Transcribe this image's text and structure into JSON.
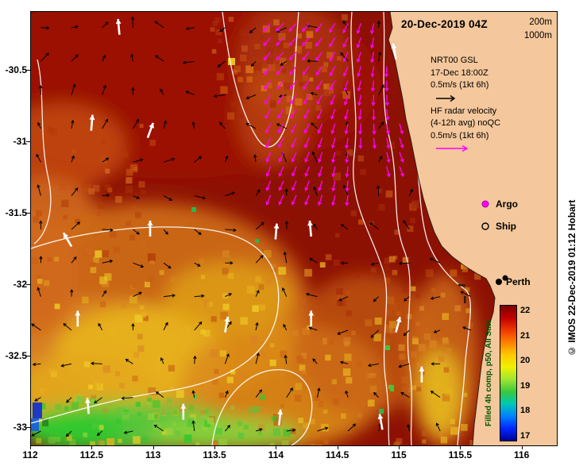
{
  "title": "20-Dec-2019 04Z",
  "copyright": "© IMOS 22-Dec-2019 01:12 Hobart",
  "legend": {
    "depth_labels": [
      "200m",
      "1000m"
    ],
    "gsl": {
      "name": "NRT00 GSL",
      "time": "17-Dec 18:00Z",
      "scale": "0.5m/s (1kt 6h)"
    },
    "hf": {
      "name": "HF radar velocity",
      "qualifier": "(4-12h avg) noQC",
      "scale": "0.5m/s (1kt 6h)"
    },
    "argo_label": "Argo",
    "ship_label": "Ship"
  },
  "map": {
    "city_label": "Perth"
  },
  "colorbar": {
    "label": "Filled 4h comp, p50, All Sats",
    "tick_labels": [
      "22",
      "21",
      "20",
      "19",
      "18",
      "17"
    ],
    "stops": [
      "#7f0000",
      "#c00000",
      "#f03800",
      "#ff8000",
      "#ffc800",
      "#f0f000",
      "#a0e632",
      "#3cc83c",
      "#00c8b4",
      "#0082ff",
      "#0028ff",
      "#000096"
    ]
  },
  "axes": {
    "x_tick_labels": [
      "112",
      "112.5",
      "113",
      "113.5",
      "114",
      "114.5",
      "115",
      "115.5",
      "116"
    ],
    "x_tick_values": [
      112,
      112.5,
      113,
      113.5,
      114,
      114.5,
      115,
      115.5,
      116
    ],
    "y_tick_labels": [
      "-30.5",
      "-31",
      "-31.5",
      "-32",
      "-32.5",
      "-33"
    ],
    "y_tick_values": [
      -30.5,
      -31,
      -31.5,
      -32,
      -32.5,
      -33
    ],
    "x_range": [
      112,
      116.28
    ],
    "y_range": [
      -33.12,
      -30.09
    ]
  },
  "chart_data": {
    "type": "heatmap",
    "title": "20-Dec-2019 04Z",
    "variable": "Sea surface temperature (°C), filled 4h composite, p50, all satellites",
    "region": {
      "lon": [
        112,
        116.28
      ],
      "lat": [
        -33.12,
        -30.09
      ]
    },
    "sst_scale_c": [
      17,
      22
    ],
    "sst_zones": [
      {
        "area": "offshore north and central (north of ~-31.5)",
        "sst_c": 22
      },
      {
        "area": "left edge near 112E, -31",
        "sst_c": 21
      },
      {
        "area": "southwest interior 112-114E, -31.5 to -32.5",
        "sst_c": 20.5
      },
      {
        "area": "south-central 113-114.5E, -32.5 to -33",
        "sst_c": 20
      },
      {
        "area": "far-south strip near -33",
        "sst_c": 19
      },
      {
        "area": "bottom-left corner speck",
        "sst_c": 17.5
      },
      {
        "area": "coastal strip south of Perth",
        "sst_c": 20.5
      }
    ],
    "contours": {
      "color": "#FFFFFF",
      "bathymetry_labels": [
        "200m",
        "1000m"
      ]
    },
    "vectors": {
      "gsl": {
        "color": "#000000",
        "grid_deg": 0.25,
        "scale": "0.5m/s (1kt 6h)"
      },
      "hf_radar": {
        "color": "#FF00FF",
        "region_lon": [
          113.95,
          115.05
        ],
        "region_lat": [
          -31.45,
          -30.17
        ],
        "grid_deg": 0.105,
        "direction": "mostly S to SSW",
        "scale": "0.5m/s (1kt 6h)"
      },
      "white_arrows": [
        {
          "lon": 112.72,
          "lat": -30.25,
          "dir": 355
        },
        {
          "lon": 112.49,
          "lat": -30.92,
          "dir": 5
        },
        {
          "lon": 112.95,
          "lat": -30.97,
          "dir": 20
        },
        {
          "lon": 114.97,
          "lat": -30.42,
          "dir": 350
        },
        {
          "lon": 112.33,
          "lat": -31.73,
          "dir": 330
        },
        {
          "lon": 112.97,
          "lat": -31.66,
          "dir": 0
        },
        {
          "lon": 113.99,
          "lat": -31.68,
          "dir": 5
        },
        {
          "lon": 114.28,
          "lat": -31.66,
          "dir": 355
        },
        {
          "lon": 112.38,
          "lat": -32.29,
          "dir": 0
        },
        {
          "lon": 113.58,
          "lat": -32.33,
          "dir": 10
        },
        {
          "lon": 114.28,
          "lat": -32.29,
          "dir": 0
        },
        {
          "lon": 114.97,
          "lat": -32.33,
          "dir": 15
        },
        {
          "lon": 115.18,
          "lat": -32.68,
          "dir": 0
        },
        {
          "lon": 112.47,
          "lat": -32.9,
          "dir": 355
        },
        {
          "lon": 113.24,
          "lat": -32.94,
          "dir": 0
        },
        {
          "lon": 114.02,
          "lat": -32.98,
          "dir": 5
        },
        {
          "lon": 114.86,
          "lat": -33.01,
          "dir": 350
        }
      ]
    },
    "city": {
      "name": "Perth",
      "lon": 115.86,
      "lat": -31.95
    }
  }
}
